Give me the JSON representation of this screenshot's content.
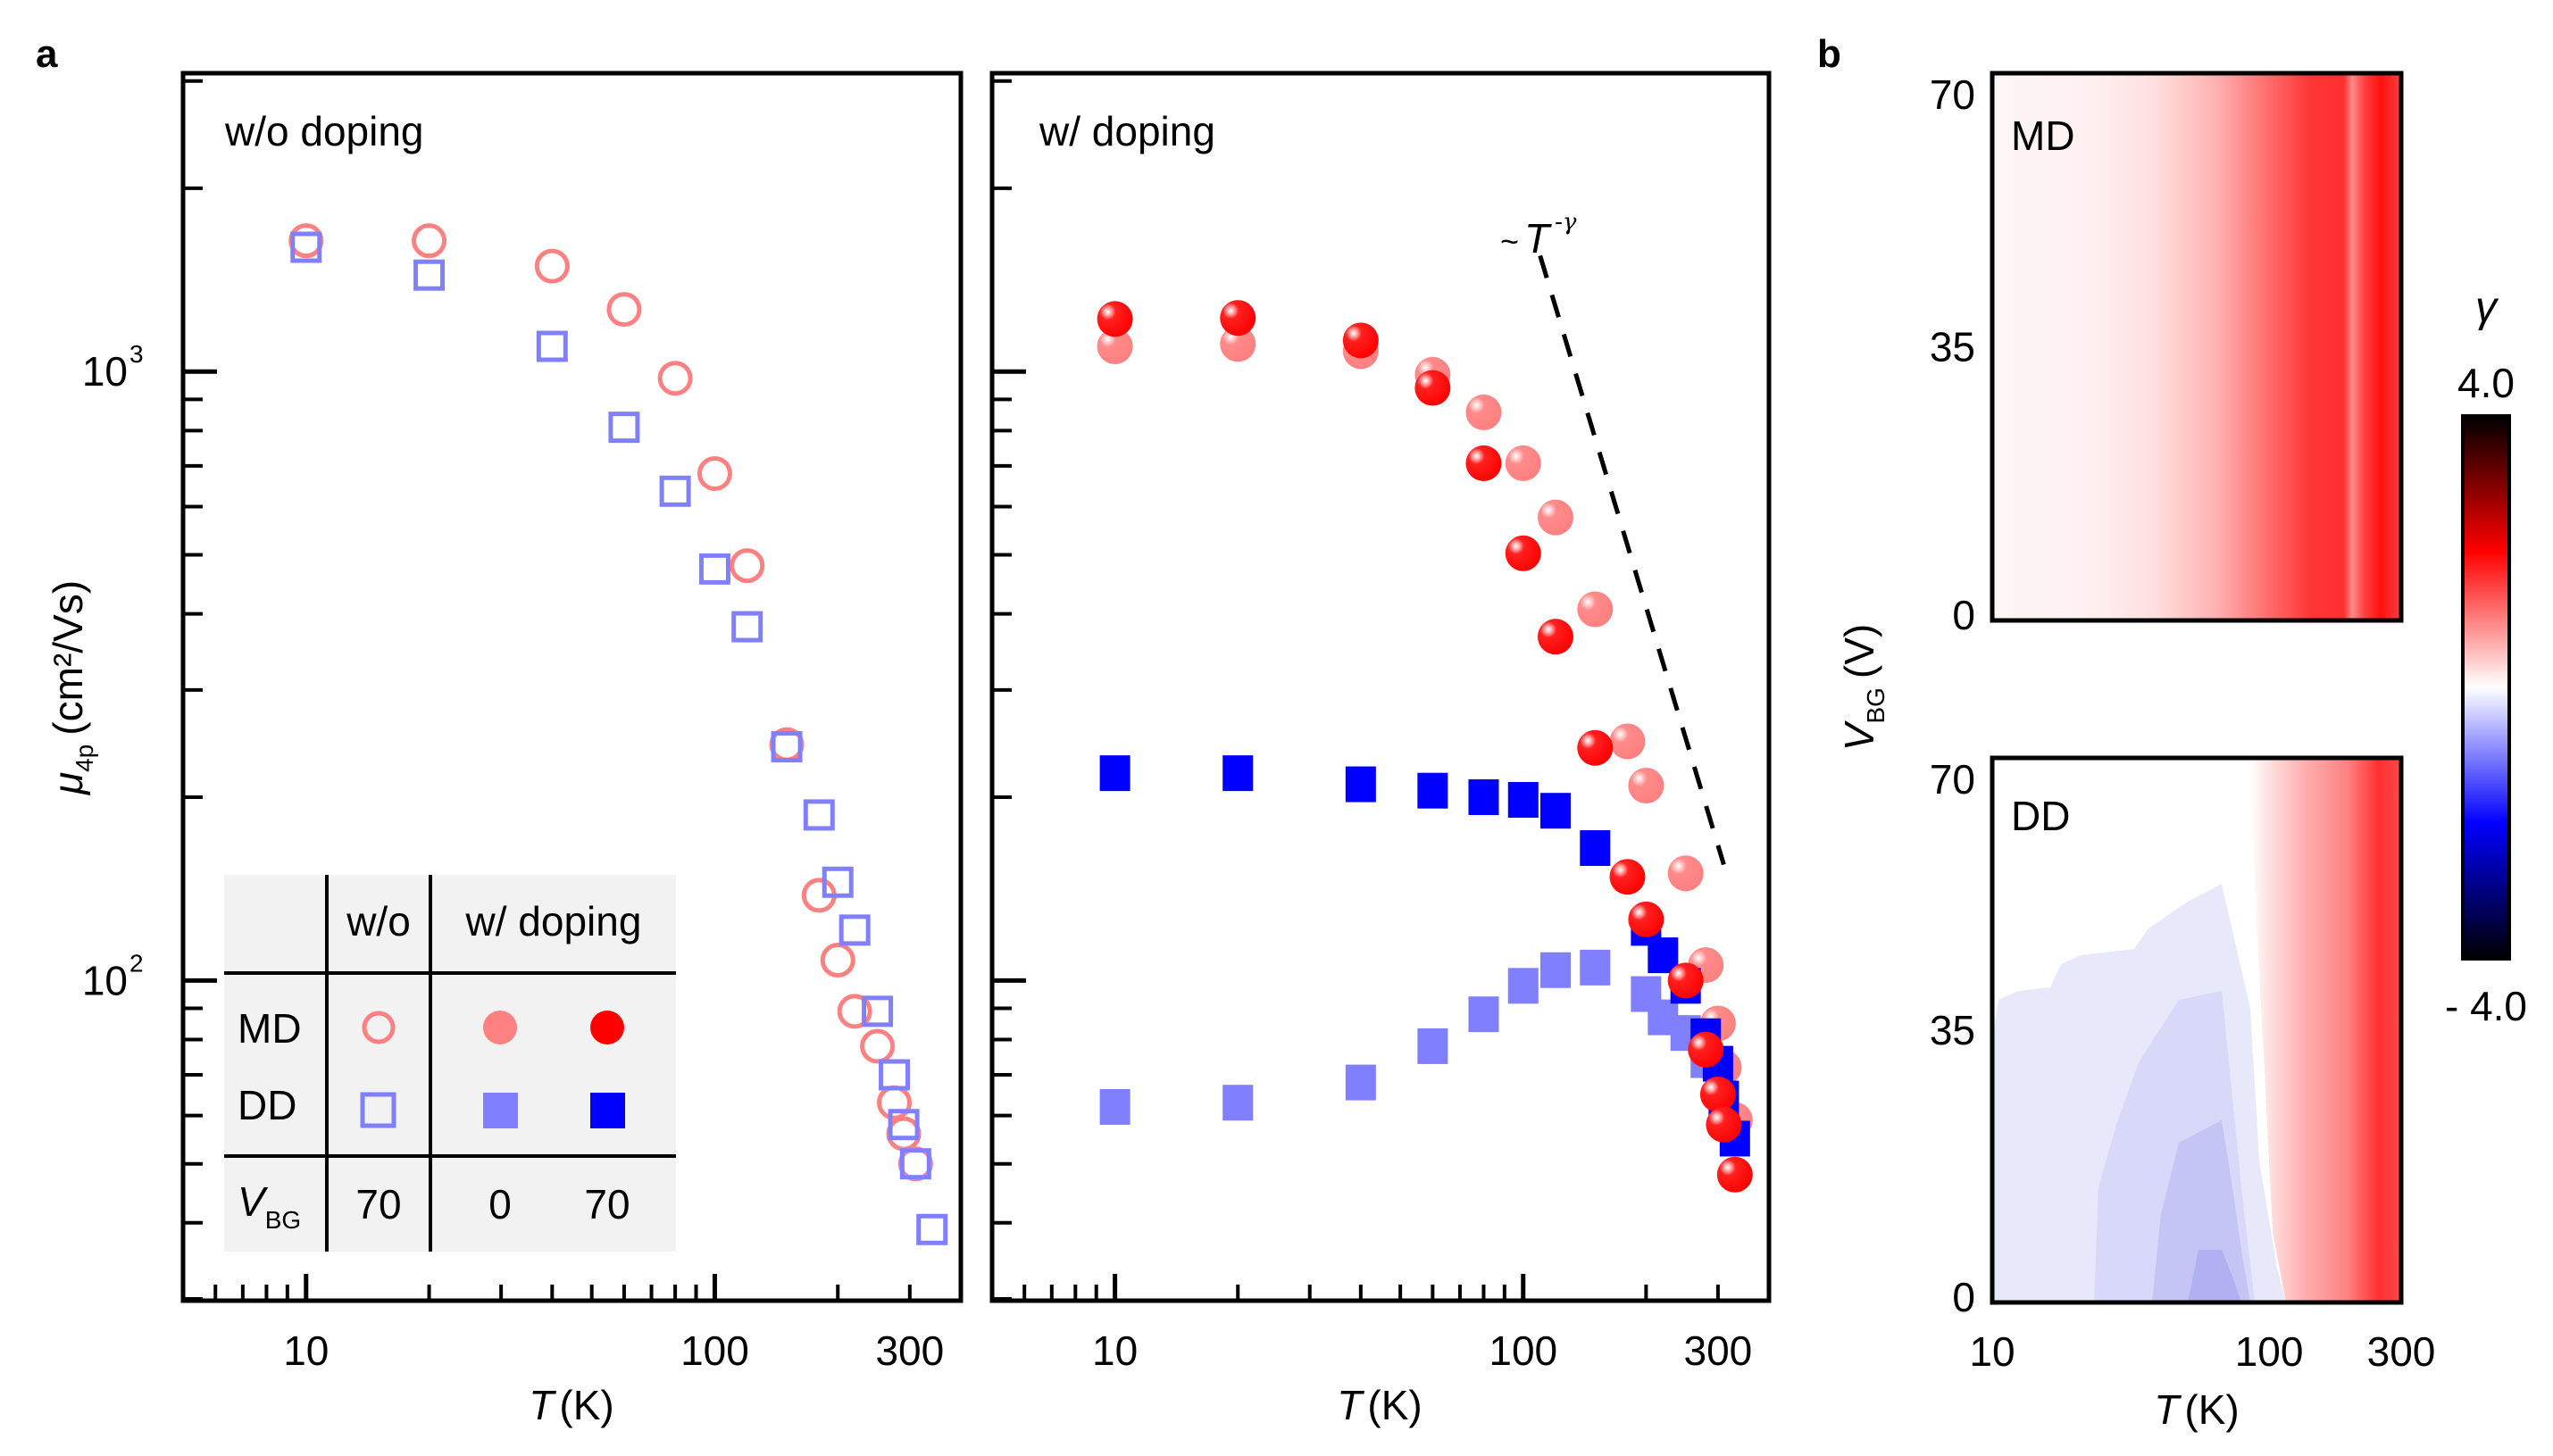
{
  "panel_labels": {
    "a": "a",
    "b": "b"
  },
  "chart_data": [
    {
      "type": "scatter",
      "id": "a-left",
      "title": "w/o doping",
      "xlabel": "T (K)",
      "xlabel_var": "T",
      "xlabel_unit": "(K)",
      "ylabel_var": "μ",
      "ylabel_sub": "4p",
      "ylabel_unit": "(cm²/Vs)",
      "xscale": "log",
      "yscale": "log",
      "xlim": [
        5.0,
        400
      ],
      "ylim": [
        29.8,
        3090
      ],
      "xticks": [
        {
          "v": 10,
          "label": "10"
        },
        {
          "v": 100,
          "label": "100"
        },
        {
          "v": 300,
          "label": "300"
        }
      ],
      "yticks": [
        {
          "v": 1000,
          "label": "10",
          "exp": "3"
        },
        {
          "v": 100,
          "label": "10",
          "exp": "2"
        }
      ],
      "series": [
        {
          "name": "MD w/o",
          "marker": "open-circle",
          "color": "#ff8080",
          "x": [
            10,
            20,
            40,
            60,
            80,
            100,
            120,
            150,
            180,
            200,
            220,
            250,
            275,
            290,
            310
          ],
          "y": [
            1640,
            1640,
            1490,
            1265,
            975,
            680,
            480,
            244,
            138,
            108,
            89,
            78,
            63,
            56,
            50
          ]
        },
        {
          "name": "DD w/o",
          "marker": "open-square",
          "color": "#8080ff",
          "x": [
            10,
            20,
            40,
            60,
            80,
            100,
            120,
            150,
            180,
            200,
            220,
            250,
            275,
            290,
            310,
            340
          ],
          "y": [
            1600,
            1440,
            1100,
            810,
            636,
            474,
            381,
            242,
            187,
            145,
            121,
            89,
            70,
            58,
            50,
            39
          ]
        }
      ]
    },
    {
      "type": "scatter",
      "id": "a-right",
      "title": "w/ doping",
      "xlabel": "T (K)",
      "xlabel_var": "T",
      "xlabel_unit": "(K)",
      "xscale": "log",
      "yscale": "log",
      "xlim": [
        5.0,
        400
      ],
      "ylim": [
        29.8,
        3090
      ],
      "xticks": [
        {
          "v": 10,
          "label": "10"
        },
        {
          "v": 100,
          "label": "100"
        },
        {
          "v": 300,
          "label": "300"
        }
      ],
      "annotation": {
        "text": "~",
        "var": "T",
        "exp": "-γ",
        "guide_line": {
          "x": [
            110,
            310
          ],
          "y": [
            1550,
            155
          ]
        }
      },
      "series": [
        {
          "name": "MD w/ doping V_BG=0",
          "marker": "filled-circle",
          "color": "#ff8080",
          "x": [
            10,
            20,
            40,
            60,
            80,
            100,
            120,
            150,
            180,
            200,
            250,
            280,
            300,
            310,
            330
          ],
          "y": [
            1100,
            1110,
            1080,
            988,
            857,
            707,
            576,
            407,
            247,
            209,
            150,
            106,
            85,
            72,
            59
          ]
        },
        {
          "name": "DD w/ doping V_BG=0",
          "marker": "filled-square",
          "color": "#8080ff",
          "x": [
            10,
            20,
            40,
            60,
            80,
            100,
            120,
            150,
            200,
            220,
            250,
            280
          ],
          "y": [
            62,
            63,
            68,
            78,
            88,
            98,
            104,
            105,
            95,
            87,
            82,
            74
          ]
        },
        {
          "name": "DD w/ doping V_BG=70",
          "marker": "filled-square",
          "color": "#0000ff",
          "x": [
            10,
            20,
            40,
            60,
            80,
            100,
            120,
            150,
            200,
            220,
            250,
            280,
            300,
            310,
            330
          ],
          "y": [
            219,
            219,
            210,
            205,
            200,
            198,
            190,
            165,
            122,
            110,
            98,
            81,
            73,
            64,
            55
          ]
        },
        {
          "name": "MD w/ doping V_BG=70",
          "marker": "filled-circle",
          "color": "#ff0000",
          "x": [
            10,
            20,
            40,
            60,
            80,
            100,
            120,
            150,
            180,
            200,
            250,
            280,
            300,
            310,
            330
          ],
          "y": [
            1220,
            1225,
            1125,
            940,
            707,
            503,
            367,
            241,
            148,
            126,
            100,
            77,
            65,
            58,
            48
          ]
        }
      ]
    },
    {
      "type": "heatmap",
      "id": "b",
      "panels": [
        {
          "label": "MD",
          "pattern": "md"
        },
        {
          "label": "DD",
          "pattern": "dd"
        }
      ],
      "xlabel_var": "T",
      "xlabel_unit": "(K)",
      "ylabel_var": "V",
      "ylabel_sub": "BG",
      "ylabel_unit": "(V)",
      "xscale": "log",
      "xlim": [
        10,
        300
      ],
      "xticks": [
        {
          "v": 10,
          "label": "10"
        },
        {
          "v": 100,
          "label": "100"
        },
        {
          "v": 300,
          "label": "300"
        }
      ],
      "ylim": [
        0,
        70
      ],
      "yticks": [
        {
          "v": 70,
          "label": "70"
        },
        {
          "v": 35,
          "label": "35"
        },
        {
          "v": 0,
          "label": "0"
        }
      ],
      "colorbar": {
        "label": "γ",
        "max_label": "4.0",
        "min_label": "- 4.0",
        "range": [
          -4.0,
          4.0
        ],
        "colors": [
          "#000000",
          "#0000ff",
          "#ffffff",
          "#ff0000",
          "#000000"
        ]
      }
    }
  ],
  "legend_table": {
    "header": [
      "",
      "w/o",
      "w/ doping"
    ],
    "rows": [
      {
        "label": "MD",
        "cells": [
          "open-circle:#ff8080",
          "filled-circle:#ff8080",
          "filled-circle:#ff0000"
        ]
      },
      {
        "label": "DD",
        "cells": [
          "open-square:#8080ff",
          "filled-square:#8080ff",
          "filled-square:#0000ff"
        ]
      }
    ],
    "vbg_label_var": "V",
    "vbg_label_sub": "BG",
    "vbg_values": [
      "70",
      "0",
      "70"
    ]
  }
}
